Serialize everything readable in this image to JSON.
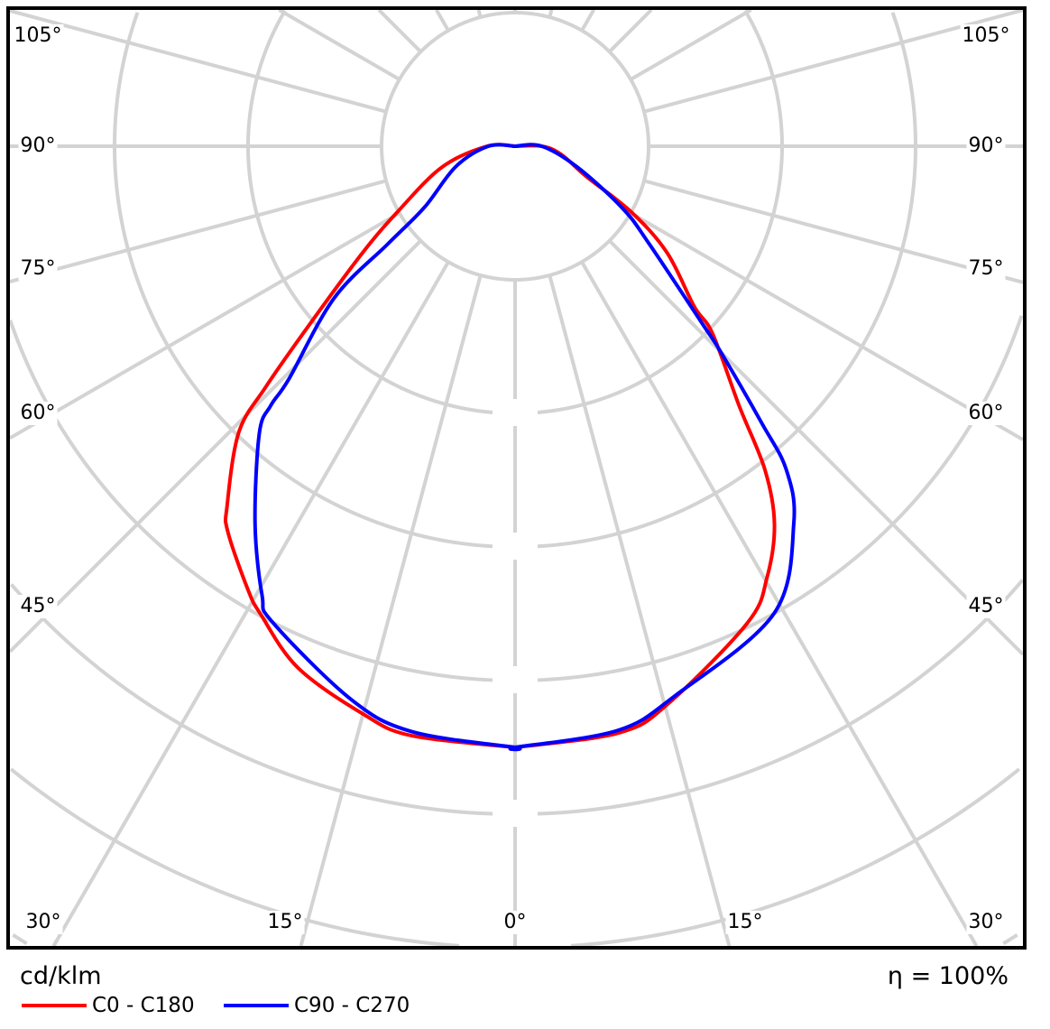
{
  "chart_data": {
    "type": "polar-line",
    "unit_label": "cd/klm",
    "efficiency_label": "η = 100%",
    "angle_labels_left": [
      "105°",
      "90°",
      "75°",
      "60°",
      "45°"
    ],
    "angle_labels_right": [
      "105°",
      "90°",
      "75°",
      "60°",
      "45°"
    ],
    "angle_labels_bottom": [
      "30°",
      "15°",
      "0°",
      "15°",
      "30°"
    ],
    "radial_tick_labels": [],
    "grid": true,
    "legend_position": "bottom-left",
    "series": [
      {
        "name": "C0 - C180",
        "color": "#ff0000",
        "right_half": [
          [
            0,
            4.5
          ],
          [
            10,
            4.46
          ],
          [
            15.3,
            4.33
          ],
          [
            26,
            3.97
          ],
          [
            30.3,
            3.74
          ],
          [
            34.5,
            3.43
          ],
          [
            37.7,
            3.06
          ],
          [
            40.8,
            2.57
          ],
          [
            46.5,
            2.04
          ],
          [
            48.2,
            1.8
          ],
          [
            55,
            1.39
          ],
          [
            60.5,
            1.0
          ],
          [
            67,
            0.58
          ],
          [
            80,
            0.35
          ],
          [
            90,
            0.2
          ]
        ],
        "left_half": [
          [
            0,
            4.5
          ],
          [
            10,
            4.48
          ],
          [
            15,
            4.4
          ],
          [
            22.6,
            4.23
          ],
          [
            28.5,
            3.99
          ],
          [
            31,
            3.88
          ],
          [
            36.7,
            3.6
          ],
          [
            38.7,
            3.45
          ],
          [
            44,
            2.98
          ],
          [
            46,
            2.6
          ],
          [
            49,
            2.05
          ],
          [
            55,
            1.4
          ],
          [
            61,
            1.0
          ],
          [
            74,
            0.57
          ],
          [
            90,
            0.21
          ]
        ]
      },
      {
        "name": "C90 - C270",
        "color": "#0000ff",
        "right_half": [
          [
            0,
            4.5
          ],
          [
            10,
            4.44
          ],
          [
            16.4,
            4.28
          ],
          [
            29,
            4.0
          ],
          [
            36.5,
            3.51
          ],
          [
            40,
            3.16
          ],
          [
            41.7,
            2.78
          ],
          [
            45,
            2.18
          ],
          [
            46.5,
            1.94
          ],
          [
            54,
            1.24
          ],
          [
            60,
            0.93
          ],
          [
            71.5,
            0.49
          ],
          [
            90,
            0.2
          ]
        ],
        "left_half": [
          [
            0,
            4.5
          ],
          [
            10,
            4.45
          ],
          [
            16.5,
            4.32
          ],
          [
            27,
            4.0
          ],
          [
            29.4,
            3.86
          ],
          [
            34.6,
            3.43
          ],
          [
            41.7,
            2.88
          ],
          [
            43.3,
            2.67
          ],
          [
            44.2,
            2.43
          ],
          [
            50,
            1.77
          ],
          [
            52.5,
            1.2
          ],
          [
            56,
            0.82
          ],
          [
            71,
            0.47
          ],
          [
            90,
            0.2
          ]
        ]
      }
    ]
  }
}
